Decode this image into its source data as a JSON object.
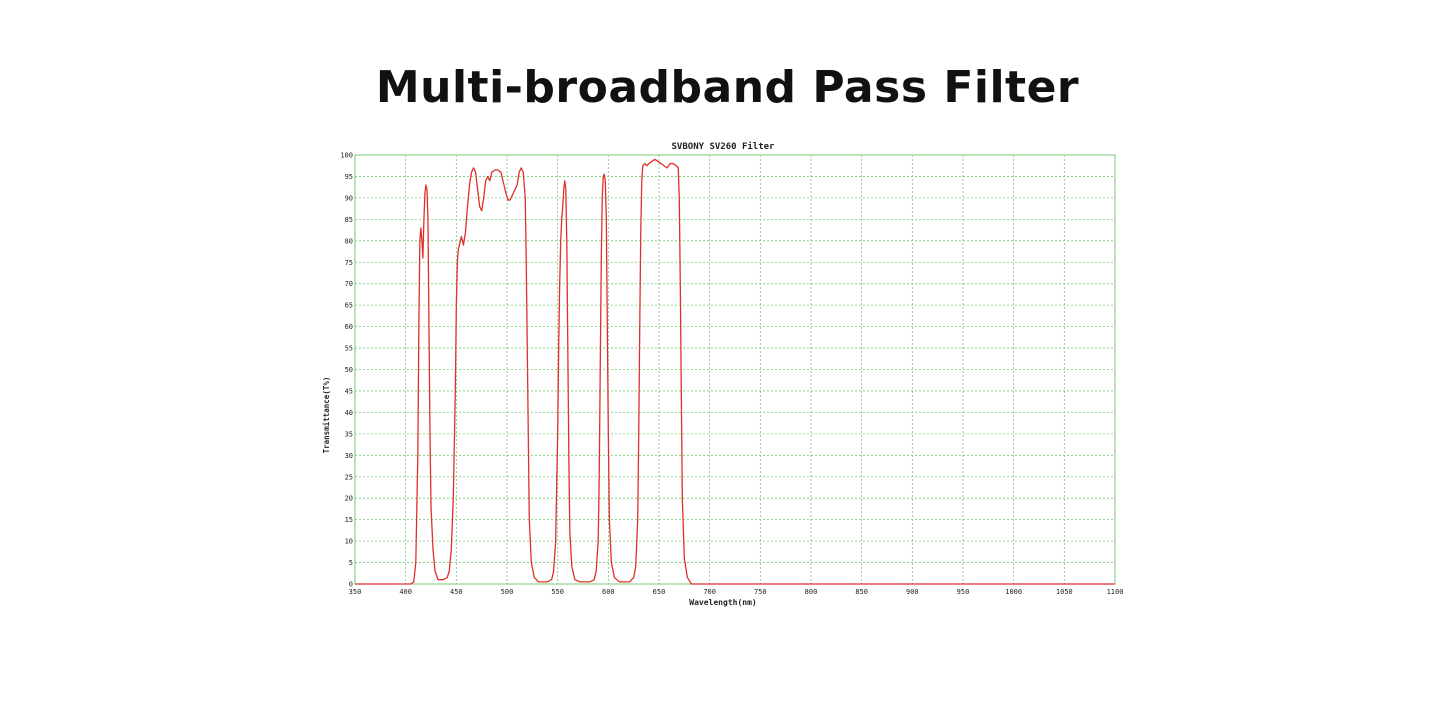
{
  "page": {
    "headline": "Multi-broadband Pass Filter"
  },
  "colors": {
    "grid": "#78c878",
    "frame": "#78c878",
    "curve": "#e0302a",
    "text": "#222222",
    "background": "#ffffff"
  },
  "chart_data": {
    "type": "line",
    "title": "SVBONY SV260 Filter",
    "xlabel": "Wavelength(nm)",
    "ylabel": "Transmittance(T%)",
    "xlim": [
      350,
      1100
    ],
    "ylim": [
      0,
      100
    ],
    "x_ticks": [
      350,
      400,
      450,
      500,
      550,
      600,
      650,
      700,
      750,
      800,
      850,
      900,
      950,
      1000,
      1050,
      1100
    ],
    "y_ticks": [
      0,
      5,
      10,
      15,
      20,
      25,
      30,
      35,
      40,
      45,
      50,
      55,
      60,
      65,
      70,
      75,
      80,
      85,
      90,
      95,
      100
    ],
    "x_tick_labels": [
      "350",
      "400",
      "450",
      "500",
      "550",
      "600",
      "650",
      "700",
      "750",
      "800",
      "850",
      "900",
      "950",
      "1000",
      "1050",
      "1100"
    ],
    "y_tick_labels": [
      "0",
      "5",
      "10",
      "15",
      "20",
      "25",
      "30",
      "35",
      "40",
      "45",
      "50",
      "55",
      "60",
      "65",
      "70",
      "75",
      "80",
      "85",
      "90",
      "95",
      "100"
    ],
    "grid": true,
    "legend": "none",
    "series": [
      {
        "points": [
          [
            350,
            0
          ],
          [
            405,
            0
          ],
          [
            408,
            0.5
          ],
          [
            410,
            5
          ],
          [
            412,
            30
          ],
          [
            413,
            60
          ],
          [
            414,
            80
          ],
          [
            415,
            83
          ],
          [
            416,
            80
          ],
          [
            417,
            76
          ],
          [
            418,
            85
          ],
          [
            419,
            91
          ],
          [
            420,
            93
          ],
          [
            421,
            92
          ],
          [
            422,
            85
          ],
          [
            423,
            60
          ],
          [
            424,
            35
          ],
          [
            425,
            18
          ],
          [
            427,
            8
          ],
          [
            429,
            3
          ],
          [
            432,
            1
          ],
          [
            437,
            1
          ],
          [
            441,
            1.5
          ],
          [
            443,
            3
          ],
          [
            445,
            8
          ],
          [
            447,
            20
          ],
          [
            449,
            45
          ],
          [
            450,
            65
          ],
          [
            451,
            75
          ],
          [
            452,
            78
          ],
          [
            454,
            80
          ],
          [
            455,
            81
          ],
          [
            457,
            79
          ],
          [
            459,
            82
          ],
          [
            461,
            88
          ],
          [
            463,
            93
          ],
          [
            465,
            96
          ],
          [
            467,
            97
          ],
          [
            469,
            96
          ],
          [
            471,
            92
          ],
          [
            473,
            88
          ],
          [
            475,
            87
          ],
          [
            477,
            90
          ],
          [
            479,
            94
          ],
          [
            481,
            95
          ],
          [
            483,
            94
          ],
          [
            485,
            96
          ],
          [
            488,
            96.5
          ],
          [
            491,
            96.5
          ],
          [
            494,
            96
          ],
          [
            496,
            94
          ],
          [
            499,
            91
          ],
          [
            501,
            89.5
          ],
          [
            503,
            89.5
          ],
          [
            506,
            91
          ],
          [
            508,
            92
          ],
          [
            510,
            93
          ],
          [
            512,
            96
          ],
          [
            514,
            97
          ],
          [
            516,
            96
          ],
          [
            518,
            90
          ],
          [
            519,
            75
          ],
          [
            520,
            55
          ],
          [
            521,
            35
          ],
          [
            522,
            15
          ],
          [
            524,
            5
          ],
          [
            527,
            1.5
          ],
          [
            531,
            0.5
          ],
          [
            540,
            0.5
          ],
          [
            544,
            1
          ],
          [
            546,
            3
          ],
          [
            548,
            10
          ],
          [
            550,
            35
          ],
          [
            551,
            55
          ],
          [
            552,
            70
          ],
          [
            553,
            80
          ],
          [
            554,
            85
          ],
          [
            555,
            88
          ],
          [
            556,
            92
          ],
          [
            557,
            94
          ],
          [
            558,
            92
          ],
          [
            559,
            80
          ],
          [
            560,
            55
          ],
          [
            561,
            30
          ],
          [
            562,
            12
          ],
          [
            564,
            4
          ],
          [
            567,
            1
          ],
          [
            572,
            0.5
          ],
          [
            582,
            0.5
          ],
          [
            586,
            1
          ],
          [
            588,
            3
          ],
          [
            590,
            10
          ],
          [
            591,
            25
          ],
          [
            592,
            50
          ],
          [
            593,
            75
          ],
          [
            594,
            90
          ],
          [
            595,
            95
          ],
          [
            596,
            95.5
          ],
          [
            597,
            94
          ],
          [
            598,
            85
          ],
          [
            599,
            60
          ],
          [
            600,
            35
          ],
          [
            601,
            15
          ],
          [
            603,
            5
          ],
          [
            606,
            1.5
          ],
          [
            611,
            0.5
          ],
          [
            621,
            0.5
          ],
          [
            625,
            1.5
          ],
          [
            627,
            4
          ],
          [
            629,
            15
          ],
          [
            630,
            35
          ],
          [
            631,
            60
          ],
          [
            632,
            82
          ],
          [
            633,
            94
          ],
          [
            634,
            97.5
          ],
          [
            636,
            98
          ],
          [
            638,
            97.5
          ],
          [
            640,
            98
          ],
          [
            643,
            98.5
          ],
          [
            646,
            99
          ],
          [
            649,
            98.5
          ],
          [
            652,
            98
          ],
          [
            655,
            97.5
          ],
          [
            658,
            97
          ],
          [
            661,
            98
          ],
          [
            664,
            98
          ],
          [
            667,
            97.5
          ],
          [
            669,
            97
          ],
          [
            670,
            90
          ],
          [
            671,
            70
          ],
          [
            672,
            45
          ],
          [
            673,
            20
          ],
          [
            675,
            6
          ],
          [
            678,
            1.5
          ],
          [
            682,
            0
          ],
          [
            1100,
            0
          ]
        ]
      }
    ]
  }
}
